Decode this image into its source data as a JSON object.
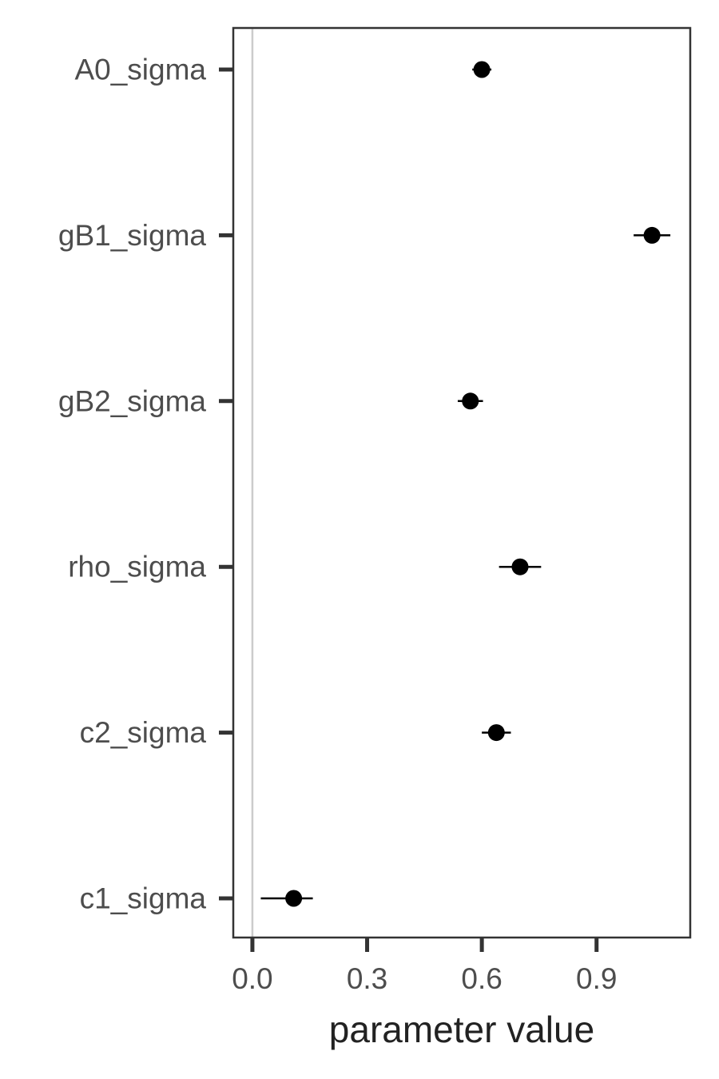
{
  "chart_data": {
    "type": "scatter",
    "xlabel": "parameter value",
    "ylabel": "",
    "xlim": [
      -0.05,
      1.145
    ],
    "x_ticks": [
      {
        "value": 0.0,
        "label": "0.0"
      },
      {
        "value": 0.3,
        "label": "0.3"
      },
      {
        "value": 0.6,
        "label": "0.6"
      },
      {
        "value": 0.9,
        "label": "0.9"
      }
    ],
    "reference_line_x": 0,
    "grid": false,
    "legend": "none",
    "colors": {
      "point": "#000000",
      "reference_line": "#cccccc",
      "axis": "#333333"
    },
    "categories": [
      "A0_sigma",
      "gB1_sigma",
      "gB2_sigma",
      "rho_sigma",
      "c2_sigma",
      "c1_sigma"
    ],
    "points": [
      {
        "label": "A0_sigma",
        "value": 0.6,
        "lower": 0.575,
        "upper": 0.625
      },
      {
        "label": "gB1_sigma",
        "value": 1.045,
        "lower": 0.997,
        "upper": 1.093
      },
      {
        "label": "gB2_sigma",
        "value": 0.57,
        "lower": 0.537,
        "upper": 0.603
      },
      {
        "label": "rho_sigma",
        "value": 0.7,
        "lower": 0.645,
        "upper": 0.755
      },
      {
        "label": "c2_sigma",
        "value": 0.638,
        "lower": 0.6,
        "upper": 0.676
      },
      {
        "label": "c1_sigma",
        "value": 0.108,
        "lower": 0.022,
        "upper": 0.158
      }
    ]
  }
}
